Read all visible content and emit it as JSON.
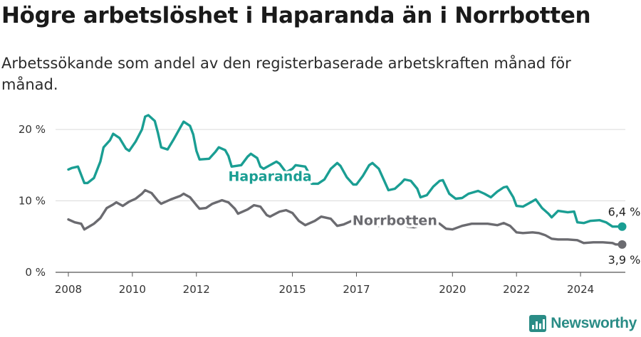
{
  "header": {
    "title": "Högre arbetslöshet i Haparanda än i Norrbotten",
    "subtitle": "Arbetssökande som andel av den registerbaserade arbetskraften månad för månad."
  },
  "brand": {
    "name": "Newsworthy",
    "icon": "bar-chart-logo-icon",
    "color": "#2a8c86"
  },
  "chart_data": {
    "type": "line",
    "xlim": [
      2007.6,
      2025.4
    ],
    "ylim": [
      0,
      22.5
    ],
    "x_ticks": [
      {
        "value": 2008,
        "label": "2008"
      },
      {
        "value": 2010,
        "label": "2010"
      },
      {
        "value": 2012,
        "label": "2012"
      },
      {
        "value": 2015,
        "label": "2015"
      },
      {
        "value": 2017,
        "label": "2017"
      },
      {
        "value": 2020,
        "label": "2020"
      },
      {
        "value": 2022,
        "label": "2022"
      },
      {
        "value": 2024,
        "label": "2024"
      }
    ],
    "y_ticks": [
      {
        "value": 0,
        "label": "0 %"
      },
      {
        "value": 10,
        "label": "10 %"
      },
      {
        "value": 20,
        "label": "20 %"
      }
    ],
    "grid": true,
    "legend": "inline-labels",
    "series": [
      {
        "name": "Haparanda",
        "color": "#1a9e93",
        "label_at": [
          2014.3,
          12.8
        ],
        "end_label": "6,4 %",
        "points": [
          [
            2008.0,
            14.4
          ],
          [
            2008.1,
            14.6
          ],
          [
            2008.3,
            14.8
          ],
          [
            2008.5,
            12.5
          ],
          [
            2008.6,
            12.5
          ],
          [
            2008.8,
            13.2
          ],
          [
            2009.0,
            15.5
          ],
          [
            2009.1,
            17.5
          ],
          [
            2009.3,
            18.5
          ],
          [
            2009.4,
            19.4
          ],
          [
            2009.6,
            18.8
          ],
          [
            2009.8,
            17.3
          ],
          [
            2009.9,
            17.0
          ],
          [
            2010.1,
            18.3
          ],
          [
            2010.3,
            20.0
          ],
          [
            2010.4,
            21.8
          ],
          [
            2010.5,
            22.0
          ],
          [
            2010.7,
            21.2
          ],
          [
            2010.8,
            19.5
          ],
          [
            2010.9,
            17.5
          ],
          [
            2011.1,
            17.2
          ],
          [
            2011.3,
            18.7
          ],
          [
            2011.5,
            20.3
          ],
          [
            2011.6,
            21.1
          ],
          [
            2011.8,
            20.5
          ],
          [
            2011.9,
            19.3
          ],
          [
            2012.0,
            17.0
          ],
          [
            2012.1,
            15.8
          ],
          [
            2012.4,
            15.9
          ],
          [
            2012.6,
            16.9
          ],
          [
            2012.7,
            17.5
          ],
          [
            2012.9,
            17.1
          ],
          [
            2013.0,
            16.3
          ],
          [
            2013.1,
            14.8
          ],
          [
            2013.4,
            15.0
          ],
          [
            2013.6,
            16.2
          ],
          [
            2013.7,
            16.6
          ],
          [
            2013.9,
            16.0
          ],
          [
            2014.0,
            14.8
          ],
          [
            2014.1,
            14.5
          ],
          [
            2014.3,
            15.0
          ],
          [
            2014.5,
            15.5
          ],
          [
            2014.6,
            15.2
          ],
          [
            2014.8,
            14.0
          ],
          [
            2015.0,
            14.5
          ],
          [
            2015.1,
            15.0
          ],
          [
            2015.4,
            14.8
          ],
          [
            2015.5,
            14.0
          ],
          [
            2015.6,
            12.4
          ],
          [
            2015.8,
            12.4
          ],
          [
            2016.0,
            13.0
          ],
          [
            2016.2,
            14.5
          ],
          [
            2016.4,
            15.3
          ],
          [
            2016.5,
            14.9
          ],
          [
            2016.7,
            13.3
          ],
          [
            2016.9,
            12.3
          ],
          [
            2017.0,
            12.3
          ],
          [
            2017.2,
            13.5
          ],
          [
            2017.4,
            15.0
          ],
          [
            2017.5,
            15.3
          ],
          [
            2017.7,
            14.5
          ],
          [
            2017.9,
            12.5
          ],
          [
            2018.0,
            11.5
          ],
          [
            2018.2,
            11.7
          ],
          [
            2018.4,
            12.5
          ],
          [
            2018.5,
            13.0
          ],
          [
            2018.7,
            12.8
          ],
          [
            2018.9,
            11.7
          ],
          [
            2019.0,
            10.5
          ],
          [
            2019.2,
            10.8
          ],
          [
            2019.4,
            12.0
          ],
          [
            2019.6,
            12.8
          ],
          [
            2019.7,
            12.9
          ],
          [
            2019.9,
            11.0
          ],
          [
            2020.1,
            10.3
          ],
          [
            2020.3,
            10.4
          ],
          [
            2020.5,
            11.0
          ],
          [
            2020.8,
            11.4
          ],
          [
            2021.0,
            11.0
          ],
          [
            2021.2,
            10.5
          ],
          [
            2021.4,
            11.3
          ],
          [
            2021.6,
            11.9
          ],
          [
            2021.7,
            12.0
          ],
          [
            2021.9,
            10.5
          ],
          [
            2022.0,
            9.3
          ],
          [
            2022.2,
            9.2
          ],
          [
            2022.4,
            9.7
          ],
          [
            2022.6,
            10.2
          ],
          [
            2022.8,
            9.0
          ],
          [
            2023.0,
            8.2
          ],
          [
            2023.1,
            7.7
          ],
          [
            2023.3,
            8.6
          ],
          [
            2023.6,
            8.4
          ],
          [
            2023.8,
            8.5
          ],
          [
            2023.9,
            7.0
          ],
          [
            2024.1,
            6.9
          ],
          [
            2024.3,
            7.2
          ],
          [
            2024.6,
            7.3
          ],
          [
            2024.8,
            7.0
          ],
          [
            2025.0,
            6.4
          ],
          [
            2025.1,
            6.4
          ],
          [
            2025.3,
            6.4
          ]
        ]
      },
      {
        "name": "Norrbotten",
        "color": "#6b6b70",
        "label_at": [
          2018.2,
          6.6
        ],
        "end_label": "3,9 %",
        "points": [
          [
            2008.0,
            7.4
          ],
          [
            2008.2,
            7.0
          ],
          [
            2008.4,
            6.8
          ],
          [
            2008.5,
            6.0
          ],
          [
            2008.8,
            6.8
          ],
          [
            2009.0,
            7.6
          ],
          [
            2009.2,
            9.0
          ],
          [
            2009.4,
            9.5
          ],
          [
            2009.5,
            9.8
          ],
          [
            2009.7,
            9.3
          ],
          [
            2009.9,
            9.9
          ],
          [
            2010.1,
            10.3
          ],
          [
            2010.3,
            11.0
          ],
          [
            2010.4,
            11.5
          ],
          [
            2010.6,
            11.1
          ],
          [
            2010.8,
            10.0
          ],
          [
            2010.9,
            9.6
          ],
          [
            2011.2,
            10.2
          ],
          [
            2011.5,
            10.7
          ],
          [
            2011.6,
            11.0
          ],
          [
            2011.8,
            10.5
          ],
          [
            2012.0,
            9.4
          ],
          [
            2012.1,
            8.9
          ],
          [
            2012.3,
            9.0
          ],
          [
            2012.5,
            9.6
          ],
          [
            2012.8,
            10.1
          ],
          [
            2013.0,
            9.8
          ],
          [
            2013.2,
            8.9
          ],
          [
            2013.3,
            8.2
          ],
          [
            2013.6,
            8.8
          ],
          [
            2013.8,
            9.4
          ],
          [
            2014.0,
            9.2
          ],
          [
            2014.2,
            8.0
          ],
          [
            2014.3,
            7.8
          ],
          [
            2014.6,
            8.5
          ],
          [
            2014.8,
            8.7
          ],
          [
            2015.0,
            8.3
          ],
          [
            2015.2,
            7.2
          ],
          [
            2015.4,
            6.6
          ],
          [
            2015.7,
            7.2
          ],
          [
            2015.9,
            7.8
          ],
          [
            2016.2,
            7.5
          ],
          [
            2016.4,
            6.5
          ],
          [
            2016.6,
            6.7
          ],
          [
            2016.9,
            7.3
          ],
          [
            2017.1,
            7.7
          ],
          [
            2017.3,
            7.5
          ],
          [
            2017.5,
            6.6
          ],
          [
            2017.7,
            6.5
          ],
          [
            2017.9,
            6.9
          ],
          [
            2018.1,
            7.4
          ],
          [
            2018.4,
            7.3
          ],
          [
            2018.6,
            6.4
          ],
          [
            2018.8,
            6.3
          ],
          [
            2019.1,
            6.7
          ],
          [
            2019.4,
            7.0
          ],
          [
            2019.6,
            6.8
          ],
          [
            2019.8,
            6.1
          ],
          [
            2020.0,
            6.0
          ],
          [
            2020.3,
            6.5
          ],
          [
            2020.6,
            6.8
          ],
          [
            2020.8,
            6.8
          ],
          [
            2021.1,
            6.8
          ],
          [
            2021.4,
            6.6
          ],
          [
            2021.6,
            6.9
          ],
          [
            2021.8,
            6.5
          ],
          [
            2022.0,
            5.6
          ],
          [
            2022.2,
            5.5
          ],
          [
            2022.5,
            5.6
          ],
          [
            2022.7,
            5.5
          ],
          [
            2022.9,
            5.2
          ],
          [
            2023.1,
            4.7
          ],
          [
            2023.3,
            4.6
          ],
          [
            2023.6,
            4.6
          ],
          [
            2023.9,
            4.5
          ],
          [
            2024.1,
            4.1
          ],
          [
            2024.4,
            4.2
          ],
          [
            2024.7,
            4.2
          ],
          [
            2025.0,
            4.1
          ],
          [
            2025.1,
            3.9
          ],
          [
            2025.3,
            3.9
          ]
        ]
      }
    ]
  }
}
